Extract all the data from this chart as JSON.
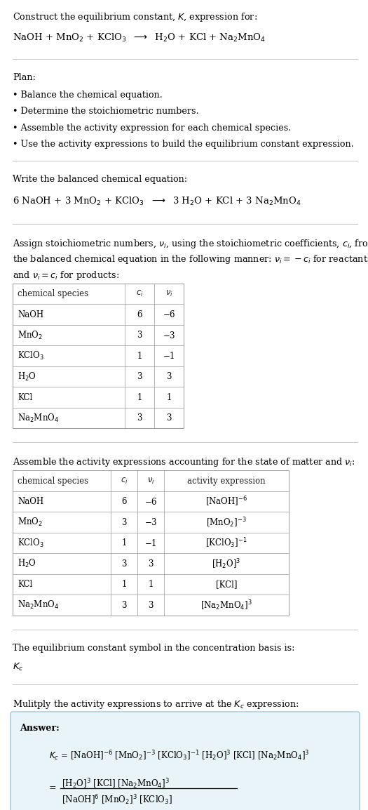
{
  "bg_color": "#ffffff",
  "text_color": "#000000",
  "section1_title": "Construct the equilibrium constant, $K$, expression for:",
  "section1_equation": "NaOH + MnO$_2$ + KClO$_3$  $\\longrightarrow$  H$_2$O + KCl + Na$_2$MnO$_4$",
  "section2_title": "Plan:",
  "section2_bullets": [
    "Balance the chemical equation.",
    "Determine the stoichiometric numbers.",
    "Assemble the activity expression for each chemical species.",
    "Use the activity expressions to build the equilibrium constant expression."
  ],
  "section3_title": "Write the balanced chemical equation:",
  "section3_equation": "6 NaOH + 3 MnO$_2$ + KClO$_3$  $\\longrightarrow$  3 H$_2$O + KCl + 3 Na$_2$MnO$_4$",
  "section4_title_line1": "Assign stoichiometric numbers, $\\nu_i$, using the stoichiometric coefficients, $c_i$, from",
  "section4_title_line2": "the balanced chemical equation in the following manner: $\\nu_i = -c_i$ for reactants",
  "section4_title_line3": "and $\\nu_i = c_i$ for products:",
  "table1_headers": [
    "chemical species",
    "$c_i$",
    "$\\nu_i$"
  ],
  "table1_data": [
    [
      "NaOH",
      "6",
      "$-$6"
    ],
    [
      "MnO$_2$",
      "3",
      "$-$3"
    ],
    [
      "KClO$_3$",
      "1",
      "$-$1"
    ],
    [
      "H$_2$O",
      "3",
      "3"
    ],
    [
      "KCl",
      "1",
      "1"
    ],
    [
      "Na$_2$MnO$_4$",
      "3",
      "3"
    ]
  ],
  "section5_title": "Assemble the activity expressions accounting for the state of matter and $\\nu_i$:",
  "table2_headers": [
    "chemical species",
    "$c_i$",
    "$\\nu_i$",
    "activity expression"
  ],
  "table2_data": [
    [
      "NaOH",
      "6",
      "$-$6",
      "[NaOH]$^{-6}$"
    ],
    [
      "MnO$_2$",
      "3",
      "$-$3",
      "[MnO$_2$]$^{-3}$"
    ],
    [
      "KClO$_3$",
      "1",
      "$-$1",
      "[KClO$_3$]$^{-1}$"
    ],
    [
      "H$_2$O",
      "3",
      "3",
      "[H$_2$O]$^3$"
    ],
    [
      "KCl",
      "1",
      "1",
      "[KCl]"
    ],
    [
      "Na$_2$MnO$_4$",
      "3",
      "3",
      "[Na$_2$MnO$_4$]$^3$"
    ]
  ],
  "section6_line1": "The equilibrium constant symbol in the concentration basis is:",
  "section6_kc": "$K_c$",
  "section7_title": "Mulitply the activity expressions to arrive at the $K_c$ expression:",
  "answer_box_color": "#e8f4f8",
  "answer_box_border": "#a0c8d8"
}
